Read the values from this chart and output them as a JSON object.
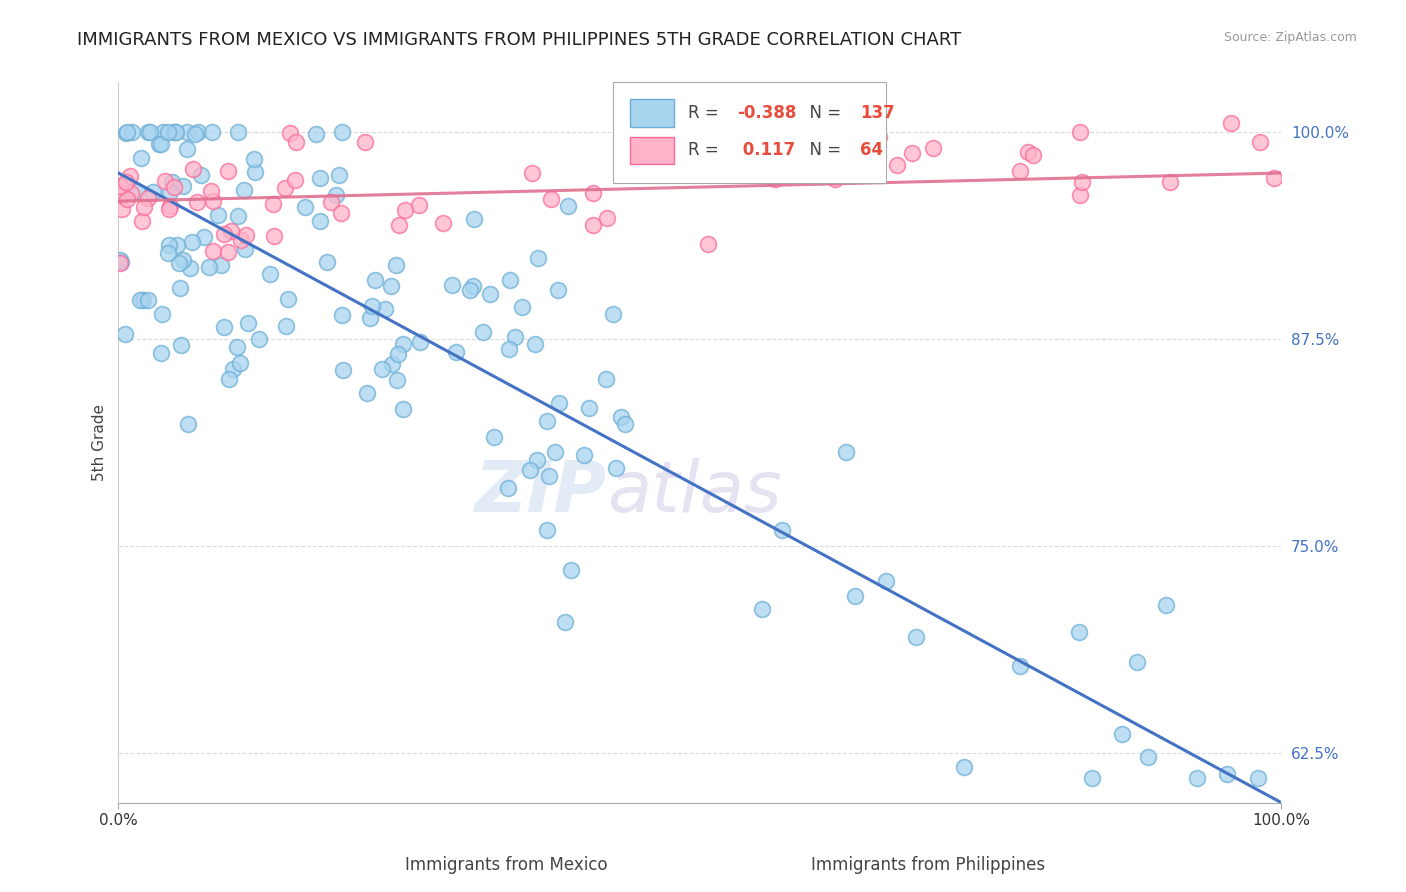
{
  "title": "IMMIGRANTS FROM MEXICO VS IMMIGRANTS FROM PHILIPPINES 5TH GRADE CORRELATION CHART",
  "source_text": "Source: ZipAtlas.com",
  "xlabel_mexico": "Immigrants from Mexico",
  "xlabel_philippines": "Immigrants from Philippines",
  "ylabel": "5th Grade",
  "r_mexico": -0.388,
  "n_mexico": 137,
  "r_philippines": 0.117,
  "n_philippines": 64,
  "xlim": [
    0.0,
    1.0
  ],
  "ylim": [
    0.595,
    1.03
  ],
  "yticks": [
    0.625,
    0.75,
    0.875,
    1.0
  ],
  "ytick_labels": [
    "62.5%",
    "75.0%",
    "87.5%",
    "100.0%"
  ],
  "color_mexico_face": "#a8d4f0",
  "color_mexico_edge": "#6baed6",
  "color_philippines_face": "#ffb3c8",
  "color_philippines_edge": "#fb6a9a",
  "color_mexico_line": "#4472c4",
  "color_philippines_line": "#e07090",
  "watermark_color": "#d0dff0",
  "watermark_color2": "#d0c8e8",
  "background_color": "#ffffff",
  "grid_color": "#cccccc",
  "title_fontsize": 13,
  "label_fontsize": 11,
  "tick_fontsize": 11,
  "legend_r_color": "#e74c3c",
  "legend_n_color": "#e74c3c",
  "right_tick_color": "#4472c4"
}
